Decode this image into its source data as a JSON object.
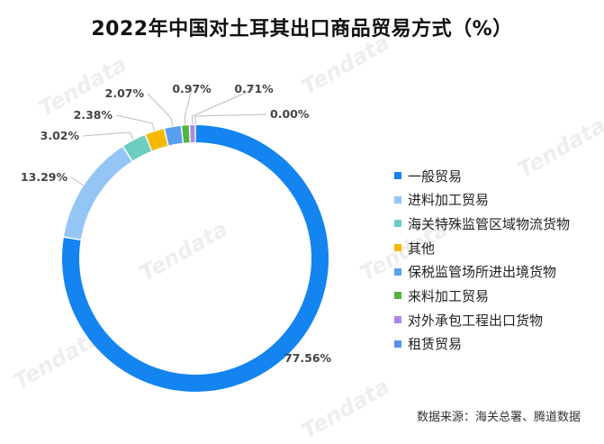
{
  "title": "2022年中国对土耳其出口商品贸易方式（%）",
  "watermark": "Tendata",
  "source": "数据来源：海关总署、腾道数据",
  "chart_data": {
    "type": "pie",
    "donut": true,
    "title": "2022年中国对土耳其出口商品贸易方式（%）",
    "legend_position": "right",
    "categories": [
      "一般贸易",
      "进料加工贸易",
      "海关特殊监管区域物流货物",
      "其他",
      "保税监管场所进出境货物",
      "来料加工贸易",
      "对外承包工程出口货物",
      "租赁贸易"
    ],
    "values": [
      77.56,
      13.29,
      3.02,
      2.38,
      2.07,
      0.97,
      0.71,
      0.0
    ],
    "labels": [
      "77.56%",
      "13.29%",
      "3.02%",
      "2.38%",
      "2.07%",
      "0.97%",
      "0.71%",
      "0.00%"
    ],
    "colors": [
      "#1384f0",
      "#94c5f5",
      "#6ccdc0",
      "#f5b800",
      "#5a9ef2",
      "#52b340",
      "#a98ae8",
      "#5b8ef5"
    ]
  }
}
